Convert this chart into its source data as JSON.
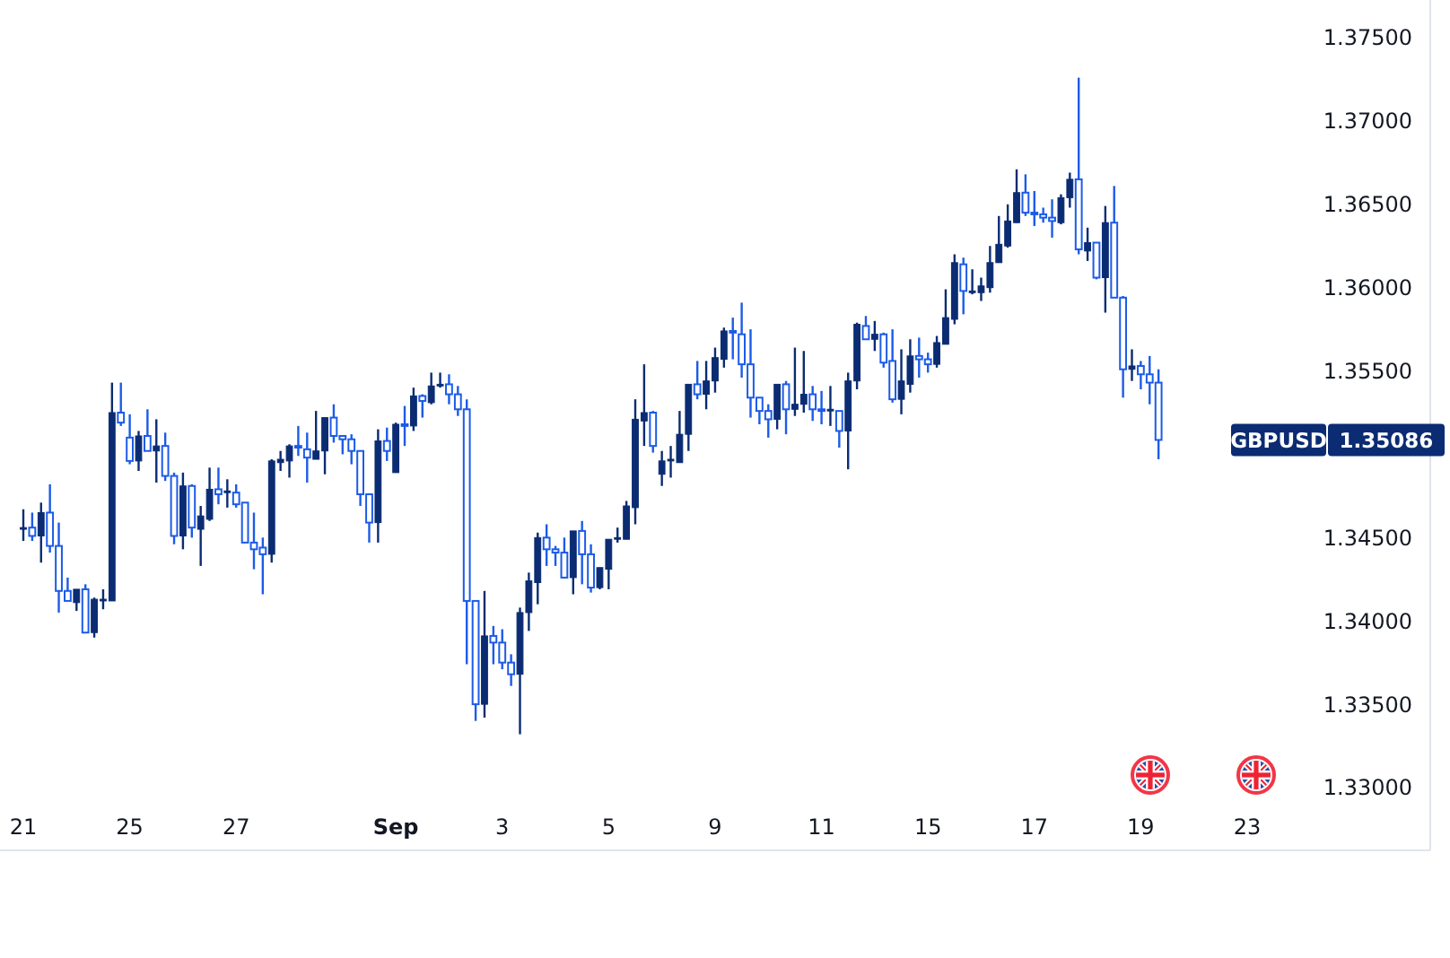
{
  "chart_data": {
    "type": "candlestick",
    "categories": [
      "21",
      null,
      null,
      null,
      null,
      null,
      null,
      null,
      null,
      null,
      null,
      null,
      "25",
      null,
      null,
      null,
      null,
      null,
      null,
      null,
      null,
      null,
      null,
      null,
      "27",
      null,
      null,
      null,
      null,
      null,
      null,
      null,
      null,
      null,
      null,
      null,
      null,
      null,
      null,
      null,
      null,
      null,
      "Sep",
      null,
      null,
      null,
      null,
      null,
      null,
      null,
      null,
      null,
      null,
      null,
      "3",
      null,
      null,
      null,
      null,
      null,
      null,
      null,
      null,
      null,
      null,
      null,
      "5",
      null,
      null,
      null,
      null,
      null,
      null,
      null,
      null,
      null,
      null,
      null,
      "9",
      null,
      null,
      null,
      null,
      null,
      null,
      null,
      null,
      null,
      null,
      null,
      "11",
      null,
      null,
      null,
      null,
      null,
      null,
      null,
      null,
      null,
      null,
      null,
      "15",
      null,
      null,
      null,
      null,
      null,
      null,
      null,
      null,
      null,
      null,
      null,
      "17",
      null,
      null,
      null,
      null,
      null,
      null,
      null,
      null,
      null,
      null,
      null,
      "19",
      null,
      null,
      null,
      null,
      null,
      null,
      null,
      null,
      null,
      null,
      null,
      "23"
    ],
    "ohlc": [
      [
        1.3455,
        1.3467,
        1.3448,
        1.3456
      ],
      [
        1.3456,
        1.3465,
        1.3448,
        1.3451
      ],
      [
        1.3451,
        1.3471,
        1.3435,
        1.3465
      ],
      [
        1.3465,
        1.3482,
        1.3441,
        1.3445
      ],
      [
        1.3445,
        1.3459,
        1.3405,
        1.3418
      ],
      [
        1.3418,
        1.3426,
        1.3412,
        1.3412
      ],
      [
        1.3411,
        1.3419,
        1.3406,
        1.3419
      ],
      [
        1.3419,
        1.3422,
        1.3393,
        1.3393
      ],
      [
        1.3393,
        1.3414,
        1.339,
        1.3413
      ],
      [
        1.3412,
        1.3419,
        1.3407,
        1.3413
      ],
      [
        1.3412,
        1.3543,
        1.3412,
        1.3525
      ],
      [
        1.3525,
        1.3543,
        1.3517,
        1.3519
      ],
      [
        1.351,
        1.3524,
        1.3494,
        1.3496
      ],
      [
        1.3496,
        1.3514,
        1.349,
        1.3511
      ],
      [
        1.3511,
        1.3527,
        1.3502,
        1.3502
      ],
      [
        1.3502,
        1.3521,
        1.3483,
        1.3505
      ],
      [
        1.3505,
        1.3513,
        1.3484,
        1.3487
      ],
      [
        1.3487,
        1.3489,
        1.3446,
        1.3451
      ],
      [
        1.3451,
        1.3489,
        1.3443,
        1.3481
      ],
      [
        1.3481,
        1.3482,
        1.345,
        1.3456
      ],
      [
        1.3455,
        1.3469,
        1.3433,
        1.3463
      ],
      [
        1.3461,
        1.3492,
        1.346,
        1.3479
      ],
      [
        1.3479,
        1.3492,
        1.347,
        1.3476
      ],
      [
        1.3477,
        1.3485,
        1.3468,
        1.3478
      ],
      [
        1.3477,
        1.3482,
        1.3468,
        1.347
      ],
      [
        1.3471,
        1.3471,
        1.3447,
        1.3447
      ],
      [
        1.3447,
        1.3465,
        1.3431,
        1.3443
      ],
      [
        1.3444,
        1.345,
        1.3416,
        1.344
      ],
      [
        1.344,
        1.3497,
        1.3435,
        1.3496
      ],
      [
        1.3495,
        1.3502,
        1.349,
        1.3497
      ],
      [
        1.3496,
        1.3506,
        1.3486,
        1.3505
      ],
      [
        1.3505,
        1.3517,
        1.3499,
        1.3504
      ],
      [
        1.3503,
        1.3513,
        1.3483,
        1.3498
      ],
      [
        1.3497,
        1.3526,
        1.3497,
        1.3502
      ],
      [
        1.3502,
        1.3522,
        1.3488,
        1.3522
      ],
      [
        1.3522,
        1.353,
        1.3507,
        1.3511
      ],
      [
        1.3511,
        1.3511,
        1.35,
        1.3509
      ],
      [
        1.3509,
        1.3512,
        1.3494,
        1.3502
      ],
      [
        1.3502,
        1.3502,
        1.3469,
        1.3476
      ],
      [
        1.3476,
        1.3476,
        1.3447,
        1.3459
      ],
      [
        1.3459,
        1.3515,
        1.3447,
        1.3508
      ],
      [
        1.3508,
        1.3516,
        1.3496,
        1.3502
      ],
      [
        1.3489,
        1.3519,
        1.3489,
        1.3518
      ],
      [
        1.3518,
        1.3529,
        1.3505,
        1.3517
      ],
      [
        1.3517,
        1.354,
        1.3514,
        1.3535
      ],
      [
        1.3535,
        1.3536,
        1.3522,
        1.3532
      ],
      [
        1.3531,
        1.3549,
        1.353,
        1.3541
      ],
      [
        1.3541,
        1.3549,
        1.354,
        1.3542
      ],
      [
        1.3542,
        1.3548,
        1.353,
        1.3536
      ],
      [
        1.3536,
        1.3541,
        1.3523,
        1.3527
      ],
      [
        1.3527,
        1.3533,
        1.3374,
        1.3412
      ],
      [
        1.3412,
        1.3412,
        1.334,
        1.335
      ],
      [
        1.335,
        1.3418,
        1.3342,
        1.3391
      ],
      [
        1.3391,
        1.3397,
        1.3374,
        1.3387
      ],
      [
        1.3387,
        1.3395,
        1.3371,
        1.3375
      ],
      [
        1.3375,
        1.338,
        1.3361,
        1.3368
      ],
      [
        1.3368,
        1.3408,
        1.3332,
        1.3405
      ],
      [
        1.3405,
        1.3429,
        1.3394,
        1.3424
      ],
      [
        1.3423,
        1.3453,
        1.341,
        1.345
      ],
      [
        1.345,
        1.3458,
        1.3433,
        1.3443
      ],
      [
        1.3443,
        1.3445,
        1.3433,
        1.3441
      ],
      [
        1.3441,
        1.345,
        1.3426,
        1.3426
      ],
      [
        1.3426,
        1.3454,
        1.3416,
        1.3454
      ],
      [
        1.3454,
        1.346,
        1.3422,
        1.344
      ],
      [
        1.344,
        1.3446,
        1.3417,
        1.342
      ],
      [
        1.342,
        1.3432,
        1.3419,
        1.3432
      ],
      [
        1.3431,
        1.3449,
        1.3419,
        1.3449
      ],
      [
        1.3449,
        1.3456,
        1.3447,
        1.345
      ],
      [
        1.3449,
        1.3472,
        1.3449,
        1.3469
      ],
      [
        1.3468,
        1.3533,
        1.3458,
        1.3521
      ],
      [
        1.352,
        1.3554,
        1.3505,
        1.3525
      ],
      [
        1.3525,
        1.3526,
        1.3501,
        1.3505
      ],
      [
        1.3488,
        1.3502,
        1.3481,
        1.3496
      ],
      [
        1.3496,
        1.3505,
        1.3486,
        1.3497
      ],
      [
        1.3495,
        1.3526,
        1.3495,
        1.3512
      ],
      [
        1.3512,
        1.3542,
        1.3502,
        1.3542
      ],
      [
        1.3542,
        1.3556,
        1.3533,
        1.3536
      ],
      [
        1.3536,
        1.3556,
        1.3527,
        1.3544
      ],
      [
        1.3544,
        1.3564,
        1.3537,
        1.3558
      ],
      [
        1.3557,
        1.3576,
        1.3552,
        1.3574
      ],
      [
        1.3574,
        1.3582,
        1.3557,
        1.3573
      ],
      [
        1.3572,
        1.3591,
        1.3546,
        1.3554
      ],
      [
        1.3554,
        1.3575,
        1.3522,
        1.3534
      ],
      [
        1.3534,
        1.3534,
        1.3518,
        1.3526
      ],
      [
        1.3526,
        1.353,
        1.351,
        1.3521
      ],
      [
        1.3521,
        1.3542,
        1.3515,
        1.3542
      ],
      [
        1.3542,
        1.3544,
        1.3512,
        1.3527
      ],
      [
        1.3527,
        1.3564,
        1.3523,
        1.353
      ],
      [
        1.353,
        1.3562,
        1.3525,
        1.3536
      ],
      [
        1.3536,
        1.3541,
        1.352,
        1.3527
      ],
      [
        1.3527,
        1.3538,
        1.3518,
        1.3526
      ],
      [
        1.3526,
        1.3541,
        1.3517,
        1.3527
      ],
      [
        1.3526,
        1.3526,
        1.3504,
        1.3514
      ],
      [
        1.3514,
        1.3549,
        1.3491,
        1.3544
      ],
      [
        1.3544,
        1.3579,
        1.3539,
        1.3578
      ],
      [
        1.3577,
        1.3583,
        1.3569,
        1.3569
      ],
      [
        1.3569,
        1.358,
        1.3562,
        1.3572
      ],
      [
        1.3572,
        1.3573,
        1.3552,
        1.3555
      ],
      [
        1.3556,
        1.3575,
        1.3531,
        1.3533
      ],
      [
        1.3533,
        1.3563,
        1.3524,
        1.3544
      ],
      [
        1.3542,
        1.3569,
        1.3537,
        1.3559
      ],
      [
        1.3559,
        1.357,
        1.3546,
        1.3557
      ],
      [
        1.3557,
        1.3561,
        1.3549,
        1.3554
      ],
      [
        1.3554,
        1.3571,
        1.3552,
        1.3567
      ],
      [
        1.3566,
        1.3599,
        1.3566,
        1.3582
      ],
      [
        1.3581,
        1.362,
        1.3578,
        1.3615
      ],
      [
        1.3614,
        1.3618,
        1.3584,
        1.3598
      ],
      [
        1.3597,
        1.3611,
        1.3596,
        1.3598
      ],
      [
        1.3597,
        1.3606,
        1.3592,
        1.3601
      ],
      [
        1.36,
        1.3625,
        1.3597,
        1.3615
      ],
      [
        1.3615,
        1.3643,
        1.3615,
        1.3626
      ],
      [
        1.3625,
        1.365,
        1.3624,
        1.364
      ],
      [
        1.3639,
        1.3671,
        1.3639,
        1.3657
      ],
      [
        1.3657,
        1.3668,
        1.3643,
        1.3645
      ],
      [
        1.3645,
        1.3658,
        1.3637,
        1.3644
      ],
      [
        1.3644,
        1.3648,
        1.3639,
        1.3642
      ],
      [
        1.3642,
        1.3653,
        1.363,
        1.364
      ],
      [
        1.3639,
        1.3656,
        1.3638,
        1.3654
      ],
      [
        1.3654,
        1.3669,
        1.3648,
        1.3665
      ],
      [
        1.3665,
        1.3726,
        1.362,
        1.3623
      ],
      [
        1.3622,
        1.3636,
        1.3616,
        1.3627
      ],
      [
        1.3627,
        1.3627,
        1.3605,
        1.3606
      ],
      [
        1.3606,
        1.3649,
        1.3585,
        1.3639
      ],
      [
        1.3639,
        1.3661,
        1.3594,
        1.3594
      ],
      [
        1.3594,
        1.3595,
        1.3534,
        1.3551
      ],
      [
        1.3551,
        1.3563,
        1.3544,
        1.3553
      ],
      [
        1.3553,
        1.3556,
        1.3539,
        1.3548
      ],
      [
        1.3548,
        1.3559,
        1.353,
        1.3543
      ],
      [
        1.3543,
        1.3551,
        1.3497,
        1.35086
      ],
      null,
      null,
      null,
      null,
      null,
      null,
      null,
      null,
      null,
      null
    ],
    "ylim": [
      1.33,
      1.375
    ],
    "yticks": [
      {
        "value": 1.33,
        "label": "1.33000"
      },
      {
        "value": 1.335,
        "label": "1.33500"
      },
      {
        "value": 1.34,
        "label": "1.34000"
      },
      {
        "value": 1.345,
        "label": "1.34500"
      },
      {
        "value": 1.355,
        "label": "1.35500"
      },
      {
        "value": 1.36,
        "label": "1.36000"
      },
      {
        "value": 1.365,
        "label": "1.36500"
      },
      {
        "value": 1.37,
        "label": "1.37000"
      },
      {
        "value": 1.375,
        "label": "1.37500"
      }
    ],
    "annotations": [
      "GBPUSD",
      "1.35086"
    ]
  }
}
